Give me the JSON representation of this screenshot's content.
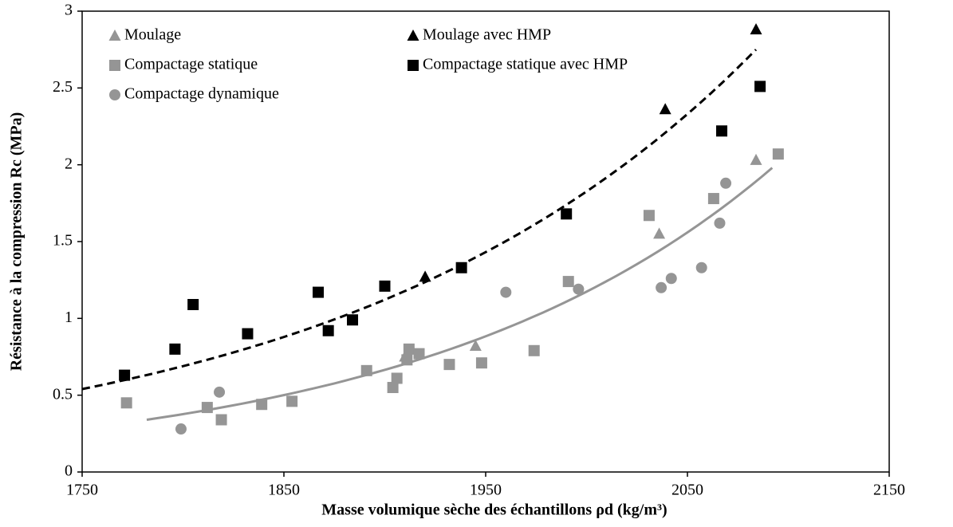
{
  "chart_data": {
    "type": "scatter",
    "xlabel": "Masse volumique sèche des échantillons ρd (kg/m³)",
    "ylabel": "Résistance à la compression Rc (MPa)",
    "xlim": [
      1750,
      2150
    ],
    "xticks": [
      1750,
      1850,
      1950,
      2050,
      2150
    ],
    "ylim": [
      0,
      3
    ],
    "yticks": [
      0,
      0.5,
      1,
      1.5,
      2,
      2.5,
      3
    ],
    "series": [
      {
        "name": "Moulage",
        "color": "#959595",
        "marker": "triangle",
        "x": [
          1910,
          1945,
          2036,
          2084
        ],
        "values": [
          0.75,
          0.82,
          1.55,
          2.03
        ]
      },
      {
        "name": "Moulage avec HMP",
        "color": "#000000",
        "marker": "triangle",
        "x": [
          1920,
          2039,
          2084
        ],
        "values": [
          1.27,
          2.36,
          2.88
        ]
      },
      {
        "name": "Compactage statique",
        "color": "#959595",
        "marker": "square",
        "x": [
          1772,
          1812,
          1819,
          1839,
          1854,
          1891,
          1904,
          1906,
          1911,
          1912,
          1917,
          1932,
          1948,
          1974,
          1991,
          2031,
          2063,
          2095
        ],
        "values": [
          0.45,
          0.42,
          0.34,
          0.44,
          0.46,
          0.66,
          0.55,
          0.61,
          0.73,
          0.8,
          0.77,
          0.7,
          0.71,
          0.79,
          1.24,
          1.67,
          1.78,
          2.07
        ]
      },
      {
        "name": "Compactage statique avec HMP",
        "color": "#000000",
        "marker": "square",
        "x": [
          1771,
          1796,
          1805,
          1832,
          1867,
          1872,
          1884,
          1900,
          1938,
          1990,
          2067,
          2086
        ],
        "values": [
          0.63,
          0.8,
          1.09,
          0.9,
          1.17,
          0.92,
          0.99,
          1.21,
          1.33,
          1.68,
          2.22,
          2.51
        ]
      },
      {
        "name": "Compactage dynamique",
        "color": "#959595",
        "marker": "circle",
        "x": [
          1799,
          1818,
          1960,
          1996,
          2037,
          2042,
          2057,
          2066,
          2069
        ],
        "values": [
          0.28,
          0.52,
          1.17,
          1.19,
          1.2,
          1.26,
          1.33,
          1.62,
          1.88
        ]
      }
    ],
    "trendlines": [
      {
        "type": "exponential",
        "color": "#000000",
        "dashed": true,
        "x": [
          1750,
          2084
        ],
        "values": [
          0.54,
          2.75
        ]
      },
      {
        "type": "exponential",
        "color": "#959595",
        "dashed": false,
        "x": [
          1782,
          2092
        ],
        "values": [
          0.34,
          1.98
        ]
      }
    ]
  }
}
